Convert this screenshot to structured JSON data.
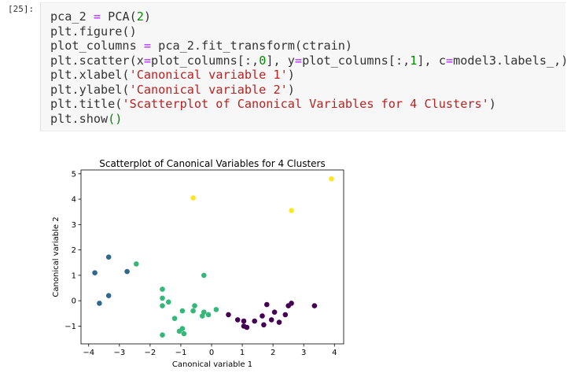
{
  "cell": {
    "prompt": "[25]:",
    "lines": [
      [
        {
          "t": "pca_2 "
        },
        {
          "t": "=",
          "c": "op"
        },
        {
          "t": " PCA("
        },
        {
          "t": "2",
          "c": "num"
        },
        {
          "t": ")"
        }
      ],
      [
        {
          "t": "plt.figure()"
        }
      ],
      [
        {
          "t": "plot_columns "
        },
        {
          "t": "=",
          "c": "op"
        },
        {
          "t": " pca_2.fit_transform(ctrain)"
        }
      ],
      [
        {
          "t": "plt.scatter(x"
        },
        {
          "t": "=",
          "c": "op"
        },
        {
          "t": "plot_columns[:,"
        },
        {
          "t": "0",
          "c": "num"
        },
        {
          "t": "], y"
        },
        {
          "t": "=",
          "c": "op"
        },
        {
          "t": "plot_columns[:,"
        },
        {
          "t": "1",
          "c": "num"
        },
        {
          "t": "], c"
        },
        {
          "t": "=",
          "c": "op"
        },
        {
          "t": "model3.labels_,)"
        }
      ],
      [
        {
          "t": "plt.xlabel("
        },
        {
          "t": "'Canonical variable 1'",
          "c": "str"
        },
        {
          "t": ")"
        }
      ],
      [
        {
          "t": "plt.ylabel("
        },
        {
          "t": "'Canonical variable 2'",
          "c": "str"
        },
        {
          "t": ")"
        }
      ],
      [
        {
          "t": "plt.title("
        },
        {
          "t": "'Scatterplot of Canonical Variables for 4 Clusters'",
          "c": "str"
        },
        {
          "t": ")"
        }
      ],
      [
        {
          "t": "plt.show"
        },
        {
          "t": "()",
          "c": "par-hi"
        }
      ]
    ]
  },
  "chart_data": {
    "type": "scatter",
    "title": "Scatterplot of Canonical Variables for 4 Clusters",
    "xlabel": "Canonical variable 1",
    "ylabel": "Canonical variable 2",
    "xlim": [
      -4.25,
      4.3
    ],
    "ylim": [
      -1.7,
      5.15
    ],
    "xticks": [
      -4,
      -3,
      -2,
      -1,
      0,
      1,
      2,
      3,
      4
    ],
    "yticks": [
      -1,
      0,
      1,
      2,
      3,
      4,
      5
    ],
    "xtick_labels": [
      "−4",
      "−3",
      "−2",
      "−1",
      "0",
      "1",
      "2",
      "3",
      "4"
    ],
    "ytick_labels": [
      "−1",
      "0",
      "1",
      "2",
      "3",
      "4",
      "5"
    ],
    "series": [
      {
        "color": "#440154",
        "points": [
          [
            0.55,
            -0.55
          ],
          [
            0.85,
            -0.75
          ],
          [
            1.05,
            -0.8
          ],
          [
            1.05,
            -1.0
          ],
          [
            1.15,
            -1.05
          ],
          [
            1.4,
            -0.8
          ],
          [
            1.65,
            -0.6
          ],
          [
            1.7,
            -0.95
          ],
          [
            1.8,
            -0.15
          ],
          [
            1.95,
            -0.75
          ],
          [
            2.05,
            -0.45
          ],
          [
            2.2,
            -0.85
          ],
          [
            2.4,
            -0.55
          ],
          [
            2.5,
            -0.2
          ],
          [
            2.6,
            -0.1
          ],
          [
            3.35,
            -0.2
          ]
        ]
      },
      {
        "color": "#31688e",
        "points": [
          [
            -3.8,
            1.1
          ],
          [
            -3.65,
            -0.1
          ],
          [
            -3.35,
            1.72
          ],
          [
            -3.35,
            0.2
          ],
          [
            -2.75,
            1.15
          ]
        ]
      },
      {
        "color": "#35b779",
        "points": [
          [
            -2.45,
            1.45
          ],
          [
            -1.6,
            0.45
          ],
          [
            -1.6,
            0.1
          ],
          [
            -1.6,
            -0.2
          ],
          [
            -1.4,
            -0.05
          ],
          [
            -1.2,
            -0.7
          ],
          [
            -1.05,
            -1.2
          ],
          [
            -0.95,
            -1.1
          ],
          [
            -0.95,
            -0.4
          ],
          [
            -0.9,
            -1.3
          ],
          [
            -1.6,
            -1.35
          ],
          [
            -0.6,
            -0.4
          ],
          [
            -0.55,
            -0.2
          ],
          [
            -0.3,
            -0.6
          ],
          [
            -0.25,
            -0.45
          ],
          [
            -0.25,
            1.0
          ],
          [
            -0.1,
            -0.55
          ],
          [
            0.15,
            -0.35
          ]
        ]
      },
      {
        "color": "#fde725",
        "points": [
          [
            -0.6,
            4.05
          ],
          [
            2.6,
            3.55
          ],
          [
            3.9,
            4.8
          ]
        ]
      }
    ]
  }
}
